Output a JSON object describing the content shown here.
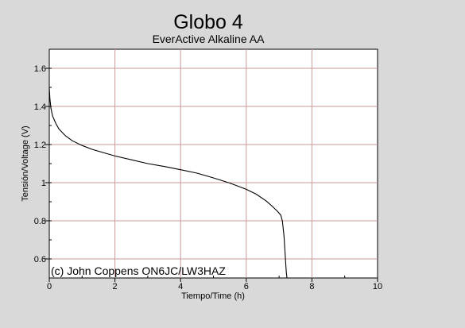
{
  "chart_data": {
    "type": "line",
    "title": "Globo 4",
    "subtitle": "EverActive Alkaline AA",
    "xlabel": "Tiempo/Time (h)",
    "ylabel": "Tensión/Voltage (V)",
    "xlim": [
      0,
      10
    ],
    "ylim": [
      0.5,
      1.7
    ],
    "x_ticks": [
      0,
      2,
      4,
      6,
      8,
      10
    ],
    "x_tick_labels": [
      "0",
      "2",
      "4",
      "6",
      "8",
      "10"
    ],
    "y_ticks": [
      0.6,
      0.8,
      1.0,
      1.2,
      1.4,
      1.6
    ],
    "y_tick_labels": [
      "0.6",
      "0.8",
      "1",
      "1.2",
      "1.4",
      "1.6"
    ],
    "grid": true,
    "annotation": "(c) John Coppens ON6JC/LW3HAZ",
    "colors": {
      "background": "#d9d9d9",
      "plot_area": "#ffffff",
      "grid": "#c99a9a",
      "line": "#000000"
    },
    "series": [
      {
        "x": [
          0,
          0.02,
          0.05,
          0.1,
          0.2,
          0.3,
          0.5,
          0.7,
          1.0,
          1.3,
          1.6,
          2.0,
          2.5,
          3.0,
          3.5,
          4.0,
          4.5,
          5.0,
          5.5,
          6.0,
          6.3,
          6.6,
          6.8,
          6.95,
          7.05,
          7.1,
          7.15,
          7.18,
          7.2,
          7.22,
          7.24
        ],
        "y": [
          1.5,
          1.44,
          1.39,
          1.35,
          1.31,
          1.28,
          1.245,
          1.22,
          1.195,
          1.175,
          1.16,
          1.14,
          1.12,
          1.1,
          1.085,
          1.068,
          1.05,
          1.025,
          0.998,
          0.965,
          0.94,
          0.905,
          0.875,
          0.85,
          0.83,
          0.8,
          0.72,
          0.64,
          0.58,
          0.53,
          0.5
        ]
      }
    ]
  }
}
